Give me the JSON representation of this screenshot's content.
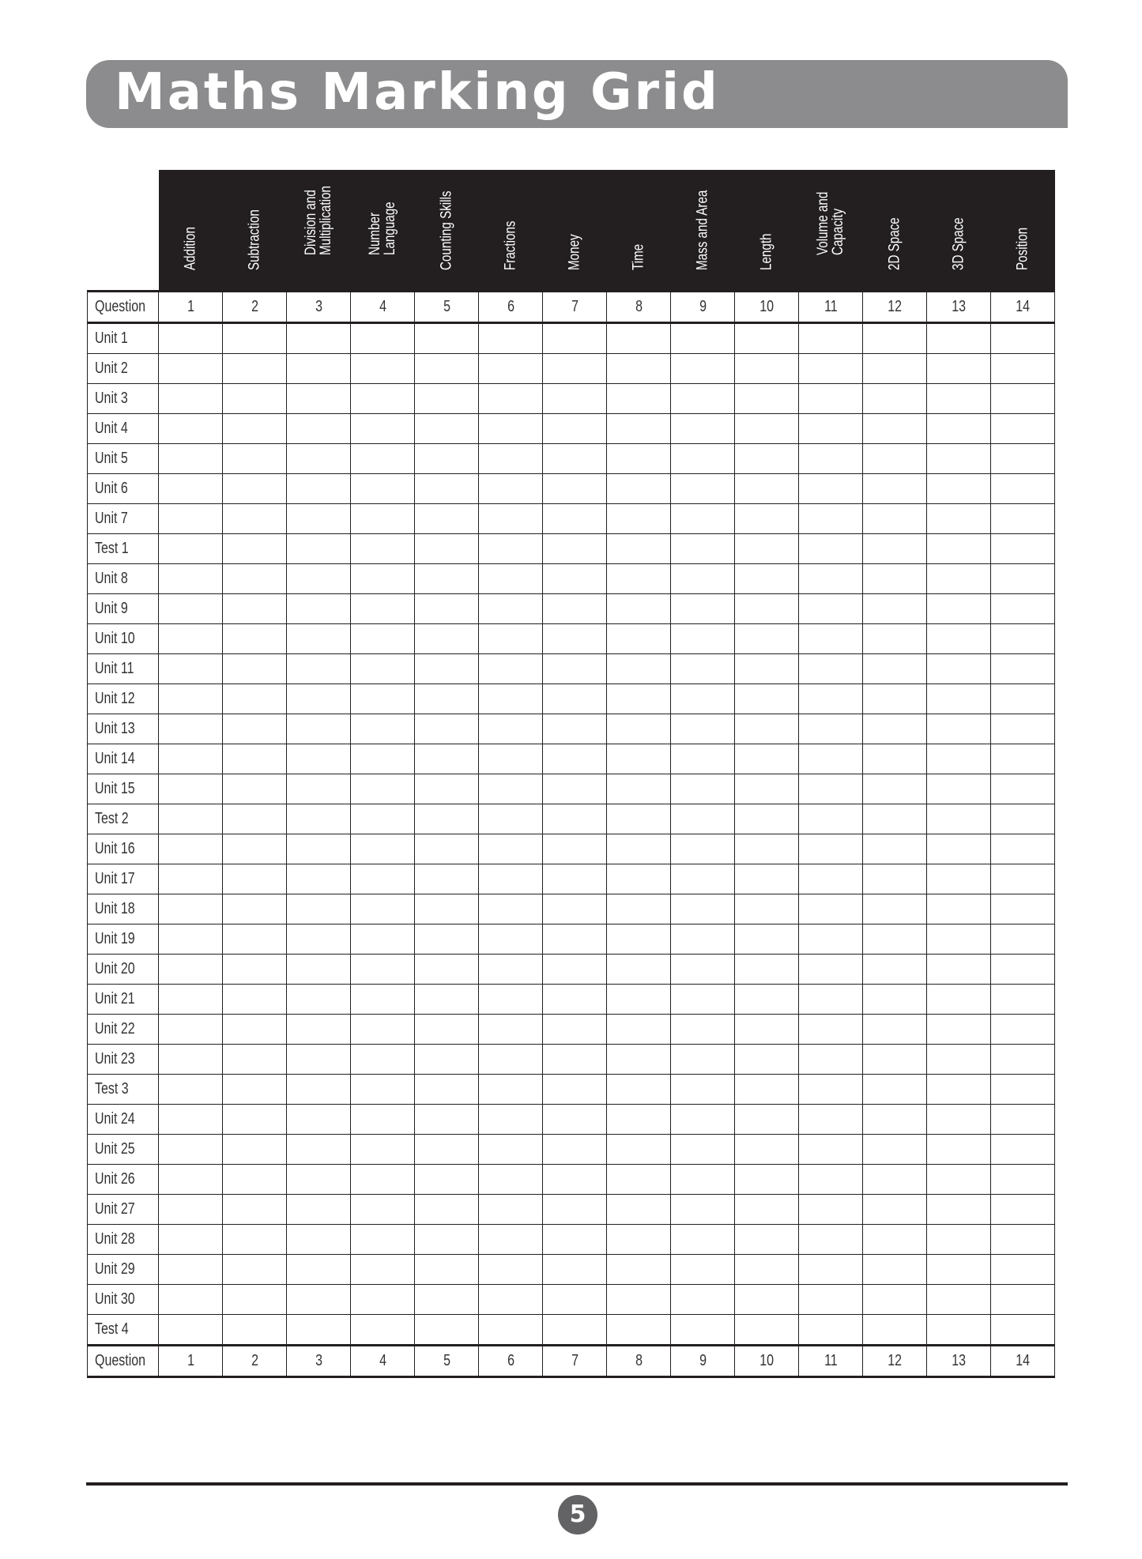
{
  "title": "Maths Marking Grid",
  "columns": [
    "Addition",
    "Subtraction",
    "Division and\nMultiplication",
    "Number\nLanguage",
    "Counting Skills",
    "Fractions",
    "Money",
    "Time",
    "Mass and Area",
    "Length",
    "Volume and\nCapacity",
    "2D Space",
    "3D Space",
    "Position"
  ],
  "question_label": "Question",
  "question_numbers": [
    "1",
    "2",
    "3",
    "4",
    "5",
    "6",
    "7",
    "8",
    "9",
    "10",
    "11",
    "12",
    "13",
    "14"
  ],
  "rows": [
    "Unit 1",
    "Unit 2",
    "Unit 3",
    "Unit 4",
    "Unit 5",
    "Unit 6",
    "Unit 7",
    "Test 1",
    "Unit 8",
    "Unit 9",
    "Unit 10",
    "Unit 11",
    "Unit 12",
    "Unit 13",
    "Unit 14",
    "Unit 15",
    "Test 2",
    "Unit 16",
    "Unit 17",
    "Unit 18",
    "Unit 19",
    "Unit 20",
    "Unit 21",
    "Unit 22",
    "Unit 23",
    "Test 3",
    "Unit 24",
    "Unit 25",
    "Unit 26",
    "Unit 27",
    "Unit 28",
    "Unit 29",
    "Unit 30",
    "Test 4"
  ],
  "page_number": "5",
  "colors": {
    "band": "#8c8c8e",
    "header": "#231f20",
    "page_badge": "#636365"
  }
}
